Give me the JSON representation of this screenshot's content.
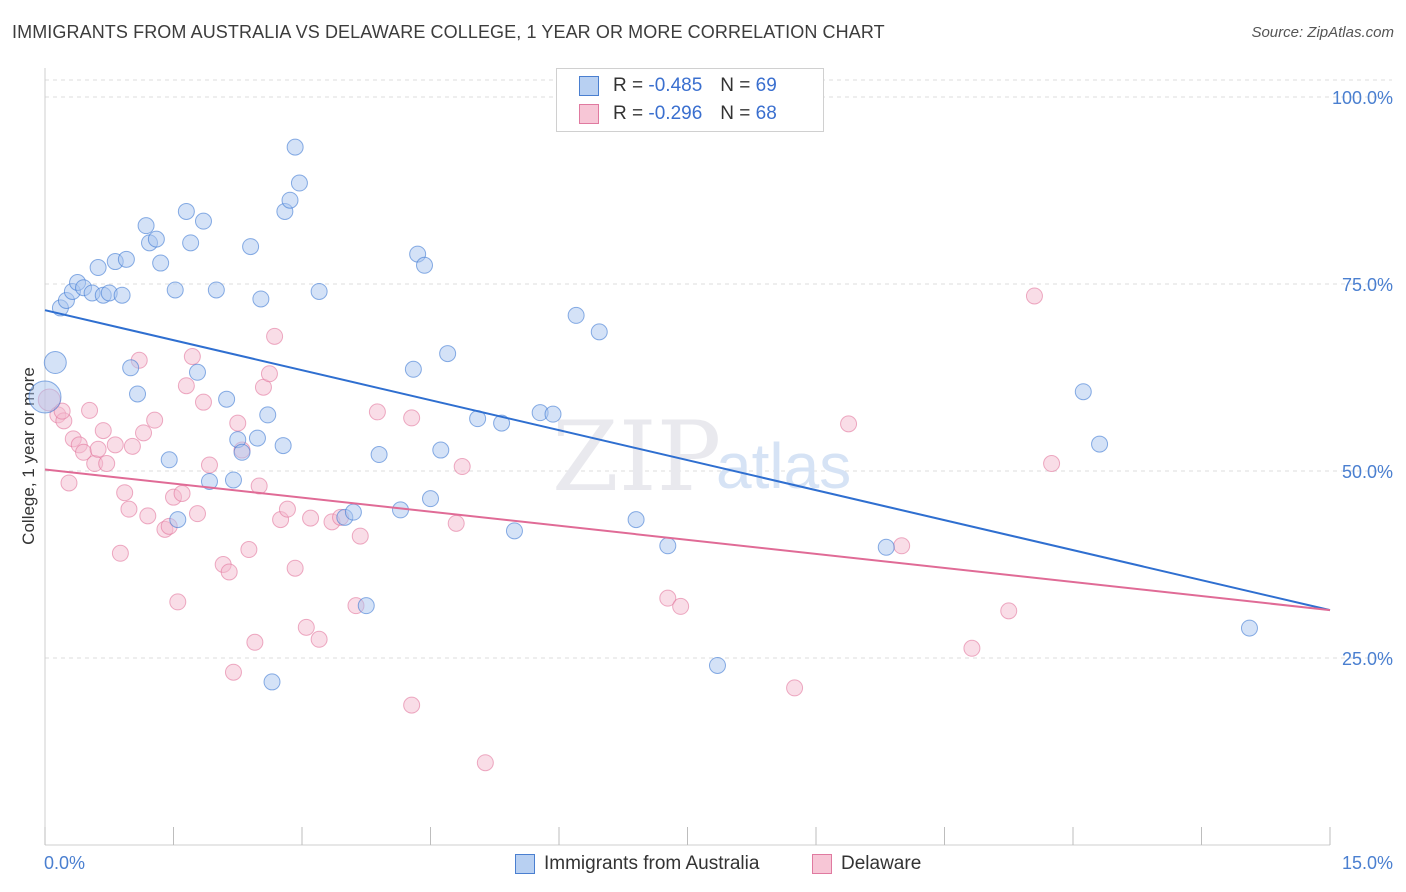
{
  "header": {
    "title": "IMMIGRANTS FROM AUSTRALIA VS DELAWARE COLLEGE, 1 YEAR OR MORE CORRELATION CHART",
    "source": "Source: ZipAtlas.com"
  },
  "watermark": {
    "zip": "ZIP",
    "atlas": "atlas"
  },
  "legend": {
    "r_label": "R =",
    "n_label": "N =",
    "rows": [
      {
        "name": "Immigrants from Australia",
        "r": "-0.485",
        "n": "69",
        "color": "#4a7fd0",
        "fill": "#b8d0f2"
      },
      {
        "name": "Delaware",
        "r": "-0.296",
        "n": "68",
        "color": "#e07aa0",
        "fill": "#f7c6d6"
      }
    ]
  },
  "colors": {
    "blue": "#2f6fd0",
    "blue_fill": "#a9c6ef",
    "pink": "#e06b96",
    "pink_fill": "#f4bcd0",
    "grid": "#dcdcdc",
    "axis_text": "#4a7fd0"
  },
  "chart_data": {
    "type": "scatter",
    "title": "IMMIGRANTS FROM AUSTRALIA VS DELAWARE COLLEGE, 1 YEAR OR MORE CORRELATION CHART",
    "xlabel": "",
    "ylabel": "College, 1 year or more",
    "xlim": [
      0,
      15
    ],
    "ylim": [
      0,
      100
    ],
    "x_tick_labels": [
      "0.0%",
      "15.0%"
    ],
    "y_ticks": [
      25,
      50,
      75,
      100
    ],
    "y_tick_labels": [
      "25.0%",
      "50.0%",
      "75.0%",
      "100.0%"
    ],
    "grid": true,
    "series": [
      {
        "name": "Immigrants from Australia",
        "color": "#2f6fd0",
        "trend": {
          "x": [
            0,
            15
          ],
          "y": [
            71.5,
            31.4
          ]
        },
        "points": [
          [
            0.0,
            59.9,
            16
          ],
          [
            0.12,
            64.5,
            11
          ],
          [
            0.18,
            71.8,
            8
          ],
          [
            0.25,
            72.8,
            8
          ],
          [
            0.32,
            74.0,
            8
          ],
          [
            0.38,
            75.2,
            8
          ],
          [
            0.45,
            74.5,
            8
          ],
          [
            0.55,
            73.8,
            8
          ],
          [
            0.62,
            77.2,
            8
          ],
          [
            0.68,
            73.5,
            8
          ],
          [
            0.75,
            73.8,
            8
          ],
          [
            0.82,
            78.0,
            8
          ],
          [
            0.9,
            73.5,
            8
          ],
          [
            0.95,
            78.3,
            8
          ],
          [
            1.0,
            63.8,
            8
          ],
          [
            1.08,
            60.3,
            8
          ],
          [
            1.18,
            82.8,
            8
          ],
          [
            1.22,
            80.5,
            8
          ],
          [
            1.3,
            81.0,
            8
          ],
          [
            1.35,
            77.8,
            8
          ],
          [
            1.45,
            51.5,
            8
          ],
          [
            1.52,
            74.2,
            8
          ],
          [
            1.55,
            43.5,
            8
          ],
          [
            1.65,
            84.7,
            8
          ],
          [
            1.7,
            80.5,
            8
          ],
          [
            1.78,
            63.2,
            8
          ],
          [
            1.85,
            83.4,
            8
          ],
          [
            1.92,
            48.6,
            8
          ],
          [
            2.0,
            74.2,
            8
          ],
          [
            2.12,
            59.6,
            8
          ],
          [
            2.2,
            48.8,
            8
          ],
          [
            2.25,
            54.2,
            8
          ],
          [
            2.3,
            52.5,
            8
          ],
          [
            2.4,
            80.0,
            8
          ],
          [
            2.48,
            54.4,
            8
          ],
          [
            2.52,
            73.0,
            8
          ],
          [
            2.6,
            57.5,
            8
          ],
          [
            2.65,
            21.8,
            8
          ],
          [
            2.78,
            53.4,
            8
          ],
          [
            2.8,
            84.7,
            8
          ],
          [
            2.86,
            86.2,
            8
          ],
          [
            2.92,
            93.3,
            8
          ],
          [
            2.97,
            88.5,
            8
          ],
          [
            3.2,
            74.0,
            8
          ],
          [
            3.5,
            43.8,
            8
          ],
          [
            3.6,
            44.5,
            8
          ],
          [
            3.75,
            32.0,
            8
          ],
          [
            3.9,
            52.2,
            8
          ],
          [
            4.15,
            44.8,
            8
          ],
          [
            4.3,
            63.6,
            8
          ],
          [
            4.35,
            79.0,
            8
          ],
          [
            4.43,
            77.5,
            8
          ],
          [
            4.5,
            46.3,
            8
          ],
          [
            4.62,
            52.8,
            8
          ],
          [
            4.7,
            65.7,
            8
          ],
          [
            5.05,
            57.0,
            8
          ],
          [
            5.48,
            42.0,
            8
          ],
          [
            5.78,
            57.8,
            8
          ],
          [
            5.93,
            57.6,
            8
          ],
          [
            6.2,
            70.8,
            8
          ],
          [
            6.47,
            68.6,
            8
          ],
          [
            6.9,
            43.5,
            8
          ],
          [
            7.27,
            40.0,
            8
          ],
          [
            7.85,
            24.0,
            8
          ],
          [
            9.82,
            39.8,
            8
          ],
          [
            12.12,
            60.6,
            8
          ],
          [
            12.31,
            53.6,
            8
          ],
          [
            14.06,
            29.0,
            8
          ],
          [
            5.33,
            56.4,
            8
          ]
        ]
      },
      {
        "name": "Delaware",
        "color": "#e06b96",
        "trend": {
          "x": [
            0,
            15
          ],
          "y": [
            50.2,
            31.4
          ]
        },
        "points": [
          [
            0.05,
            59.5,
            11
          ],
          [
            0.15,
            57.5,
            8
          ],
          [
            0.22,
            56.7,
            8
          ],
          [
            0.28,
            48.4,
            8
          ],
          [
            0.33,
            54.3,
            8
          ],
          [
            0.4,
            53.5,
            8
          ],
          [
            0.45,
            52.5,
            8
          ],
          [
            0.52,
            58.1,
            8
          ],
          [
            0.58,
            51.0,
            8
          ],
          [
            0.62,
            52.9,
            8
          ],
          [
            0.68,
            55.4,
            8
          ],
          [
            0.72,
            51.0,
            8
          ],
          [
            0.82,
            53.5,
            8
          ],
          [
            0.88,
            39.0,
            8
          ],
          [
            0.93,
            47.1,
            8
          ],
          [
            0.98,
            44.9,
            8
          ],
          [
            1.02,
            53.3,
            8
          ],
          [
            1.1,
            64.8,
            8
          ],
          [
            1.15,
            55.1,
            8
          ],
          [
            1.2,
            44.0,
            8
          ],
          [
            1.28,
            56.8,
            8
          ],
          [
            1.4,
            42.2,
            8
          ],
          [
            1.45,
            42.6,
            8
          ],
          [
            1.5,
            46.5,
            8
          ],
          [
            1.55,
            32.5,
            8
          ],
          [
            1.6,
            47.0,
            8
          ],
          [
            1.65,
            61.4,
            8
          ],
          [
            1.72,
            65.3,
            8
          ],
          [
            1.78,
            44.3,
            8
          ],
          [
            1.85,
            59.2,
            8
          ],
          [
            1.92,
            50.8,
            8
          ],
          [
            2.08,
            37.5,
            8
          ],
          [
            2.15,
            36.5,
            8
          ],
          [
            2.2,
            23.1,
            8
          ],
          [
            2.25,
            56.4,
            8
          ],
          [
            2.3,
            52.8,
            8
          ],
          [
            2.38,
            39.5,
            8
          ],
          [
            2.45,
            27.1,
            8
          ],
          [
            2.5,
            48.0,
            8
          ],
          [
            2.55,
            61.2,
            8
          ],
          [
            2.62,
            63.0,
            8
          ],
          [
            2.68,
            68.0,
            8
          ],
          [
            2.75,
            43.5,
            8
          ],
          [
            2.83,
            44.9,
            8
          ],
          [
            2.92,
            37.0,
            8
          ],
          [
            3.05,
            29.1,
            8
          ],
          [
            3.1,
            43.7,
            8
          ],
          [
            3.2,
            27.5,
            8
          ],
          [
            3.35,
            43.2,
            8
          ],
          [
            3.45,
            43.8,
            8
          ],
          [
            3.63,
            32.0,
            8
          ],
          [
            3.68,
            41.3,
            8
          ],
          [
            3.88,
            57.9,
            8
          ],
          [
            4.28,
            57.1,
            8
          ],
          [
            4.28,
            18.7,
            8
          ],
          [
            4.8,
            43.0,
            8
          ],
          [
            4.87,
            50.6,
            8
          ],
          [
            5.14,
            11.0,
            8
          ],
          [
            7.27,
            33.0,
            8
          ],
          [
            7.42,
            31.9,
            8
          ],
          [
            8.75,
            21.0,
            8
          ],
          [
            9.38,
            56.3,
            8
          ],
          [
            10.0,
            40.0,
            8
          ],
          [
            10.82,
            26.3,
            8
          ],
          [
            11.25,
            31.3,
            8
          ],
          [
            11.55,
            73.4,
            8
          ],
          [
            11.75,
            51.0,
            8
          ],
          [
            0.2,
            58.0,
            8
          ]
        ]
      }
    ]
  }
}
